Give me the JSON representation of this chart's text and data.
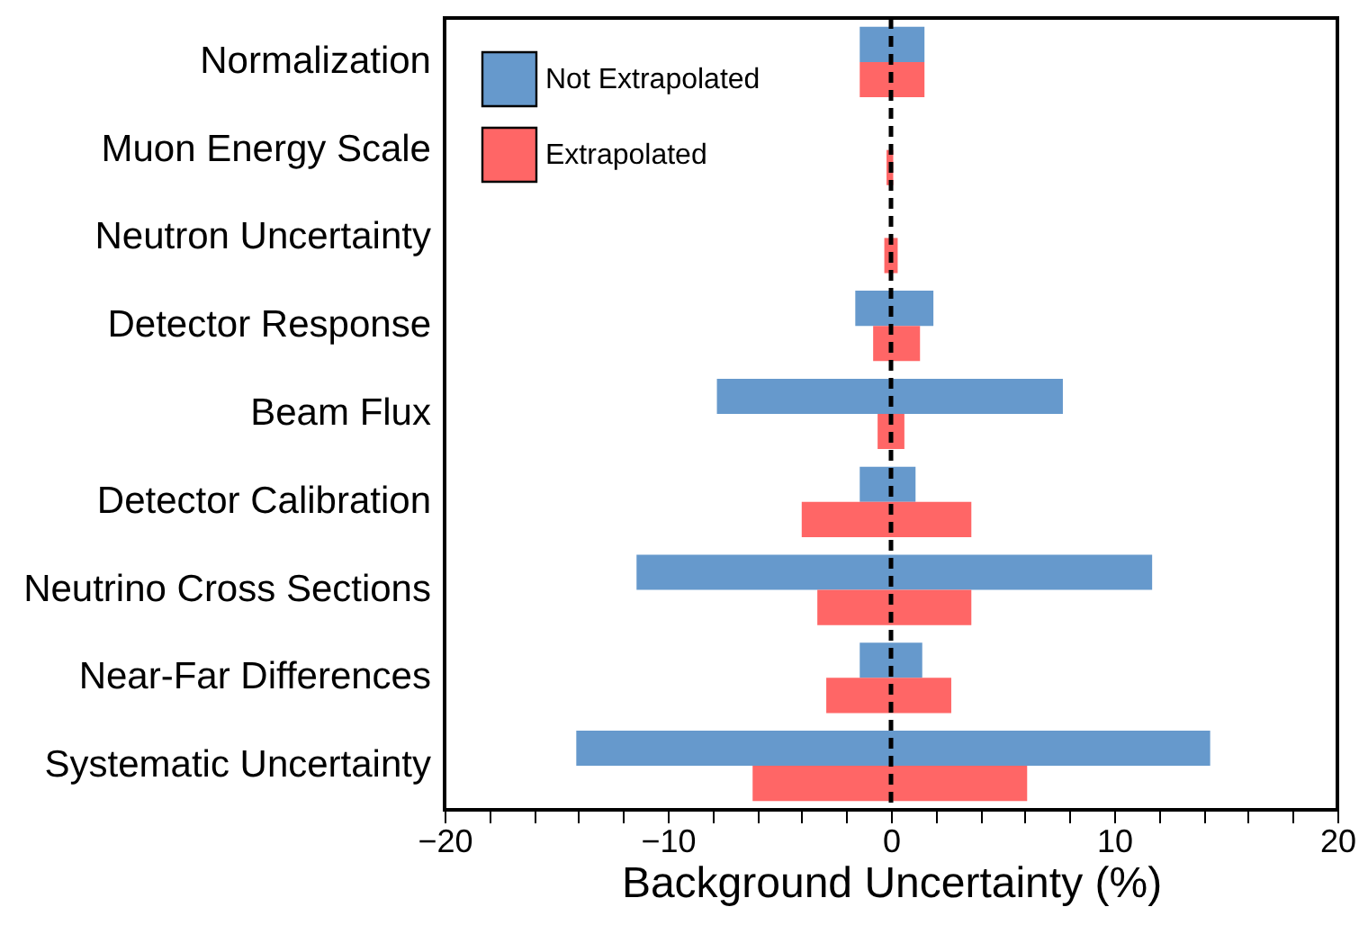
{
  "chart_data": {
    "type": "bar",
    "orientation": "horizontal",
    "xlabel": "Background Uncertainty (%)",
    "categories": [
      "Normalization",
      "Muon Energy Scale",
      "Neutron Uncertainty",
      "Detector Response",
      "Beam Flux",
      "Detector Calibration",
      "Neutrino Cross Sections",
      "Near-Far Differences",
      "Systematic Uncertainty"
    ],
    "series": [
      {
        "name": "Not Extrapolated",
        "color": "#6699cc",
        "base": [
          -1.4,
          null,
          null,
          -1.6,
          -7.8,
          -1.4,
          -11.4,
          -1.4,
          -14.1
        ],
        "values": [
          2.9,
          null,
          null,
          3.5,
          15.5,
          2.5,
          23.1,
          2.8,
          28.4
        ]
      },
      {
        "name": "Extrapolated",
        "color": "#ff6666",
        "base": [
          -1.4,
          -0.2,
          -0.3,
          -0.8,
          -0.6,
          -4.0,
          -3.3,
          -2.9,
          -6.2
        ],
        "values": [
          2.9,
          0.3,
          0.6,
          2.1,
          1.2,
          7.6,
          6.9,
          5.6,
          12.3
        ]
      }
    ],
    "xlim": [
      -20,
      20
    ],
    "xticks": [
      -20,
      {
        "value": -18,
        "label": null
      },
      {
        "value": -16,
        "label": null
      },
      {
        "value": -14,
        "label": null
      },
      {
        "value": -12,
        "label": null
      },
      -10,
      {
        "value": -8,
        "label": null
      },
      {
        "value": -6,
        "label": null
      },
      {
        "value": -4,
        "label": null
      },
      {
        "value": -2,
        "label": null
      },
      0,
      {
        "value": 2,
        "label": null
      },
      {
        "value": 4,
        "label": null
      },
      {
        "value": 6,
        "label": null
      },
      {
        "value": 8,
        "label": null
      },
      10,
      {
        "value": 12,
        "label": null
      },
      {
        "value": 14,
        "label": null
      },
      {
        "value": 16,
        "label": null
      },
      {
        "value": 18,
        "label": null
      },
      20
    ],
    "ref_lines": [
      {
        "axis": "x",
        "value": 0,
        "color": "#000000",
        "line_style": "dashed"
      }
    ],
    "legend": "top left"
  }
}
